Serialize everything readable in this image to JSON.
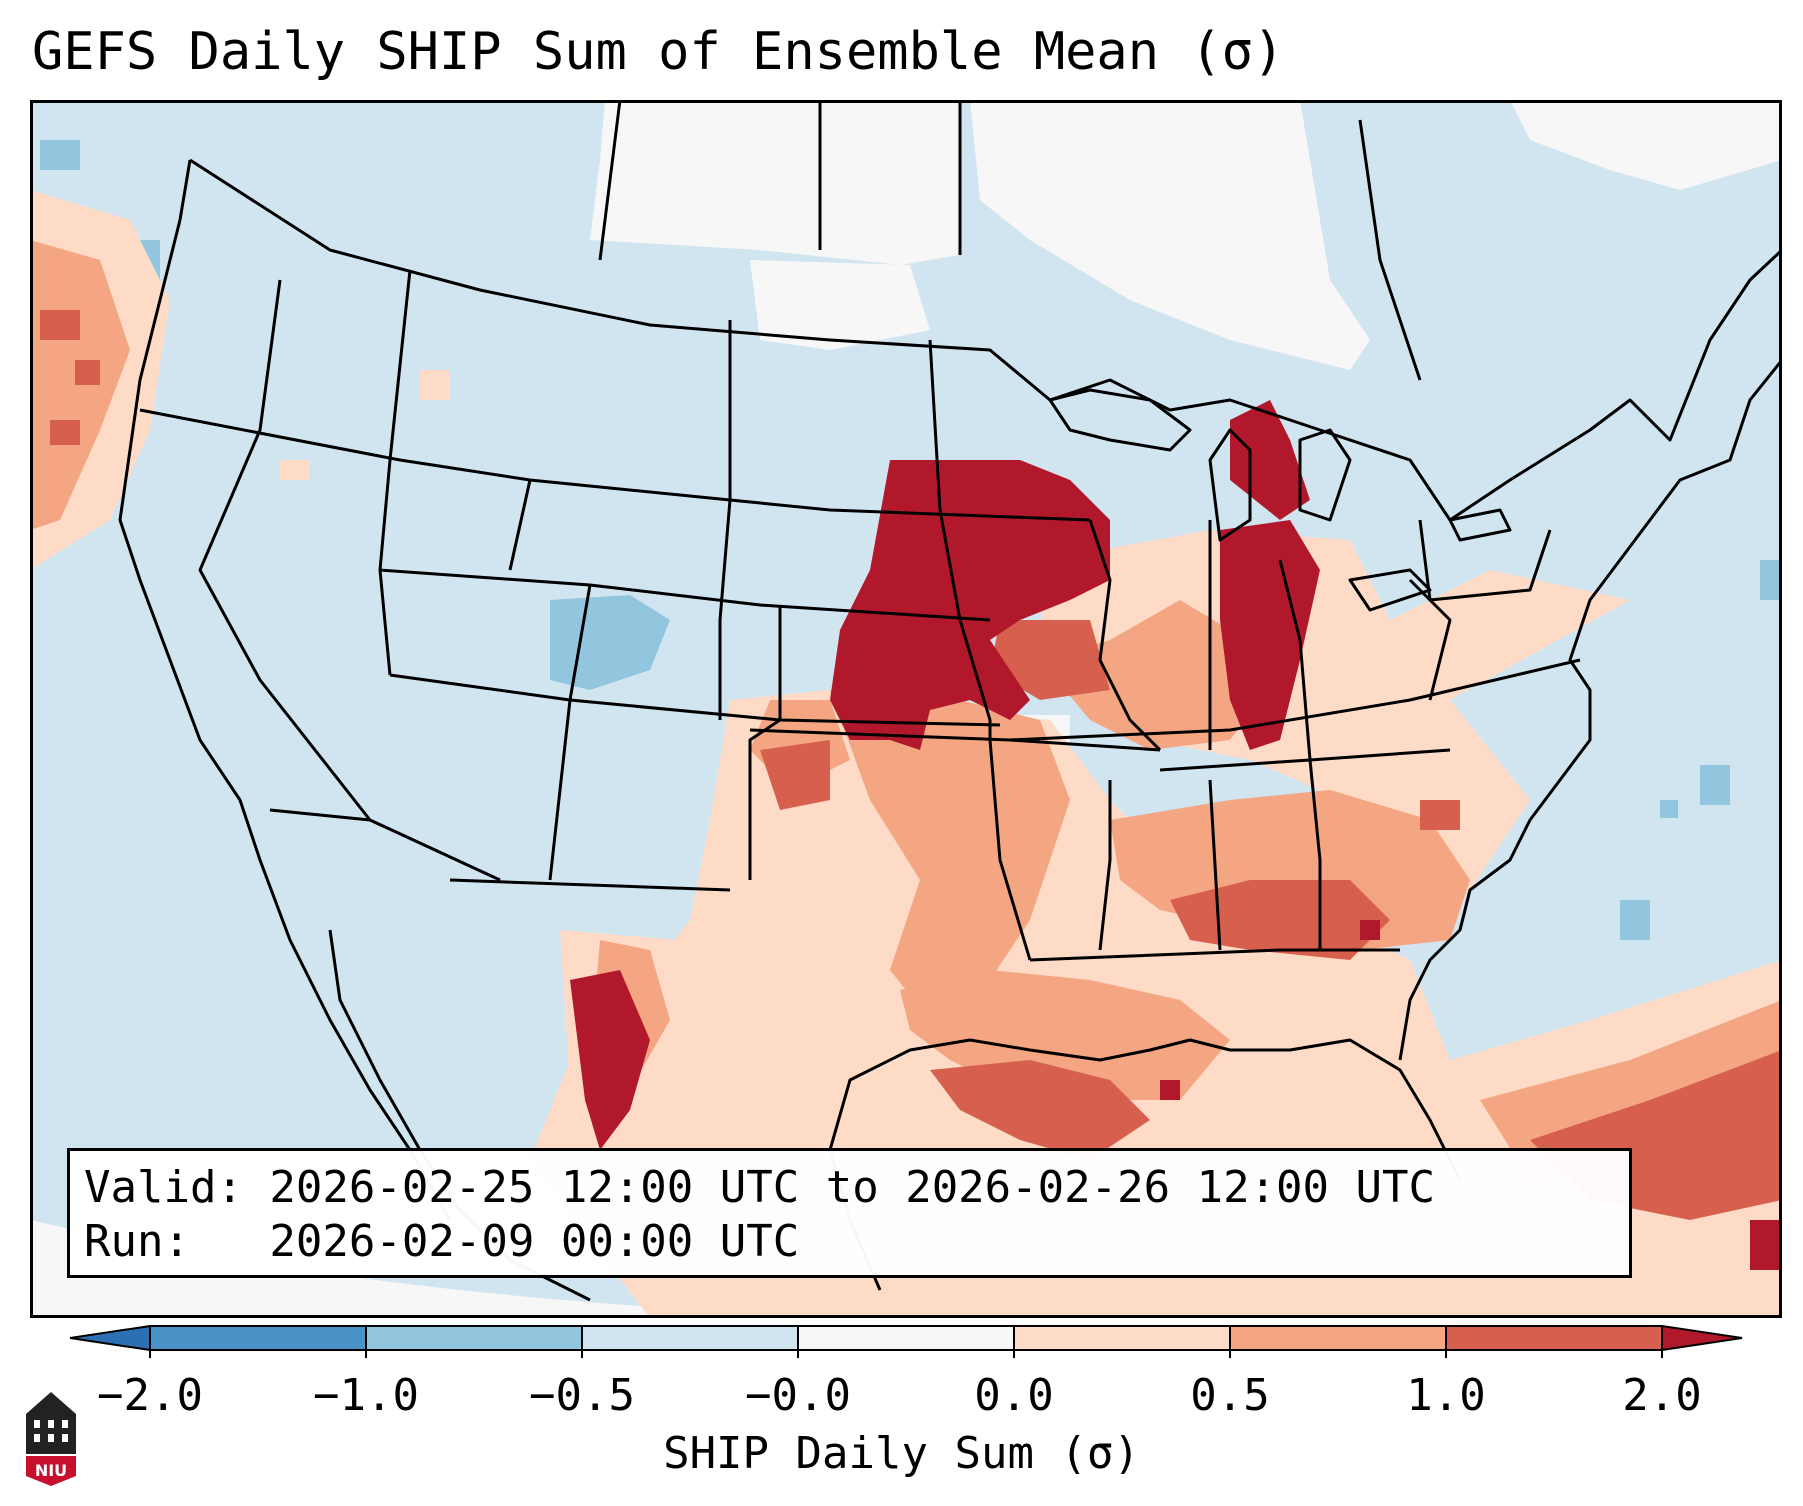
{
  "title": "GEFS Daily SHIP Sum of Ensemble Mean (σ)",
  "info": {
    "valid": "Valid: 2026-02-25 12:00 UTC to 2026-02-26 12:00 UTC",
    "run": "Run:   2026-02-09 00:00 UTC"
  },
  "colorbar": {
    "title": "SHIP Daily Sum (σ)",
    "ticks": [
      "−2.0",
      "−1.0",
      "−0.5",
      "−0.0",
      "0.0",
      "0.5",
      "1.0",
      "2.0"
    ],
    "colors": {
      "extend_low": "#2b6fb5",
      "b_m2_m1": "#4a93c8",
      "b_m1_m05": "#92c5de",
      "b_m05_m0": "#d1e5f0",
      "b_m0_0": "#f7f7f7",
      "b_0_05": "#fddbc7",
      "b_05_1": "#f4a582",
      "b_1_2": "#d6604d",
      "extend_high": "#b2182b"
    }
  },
  "logo": {
    "text": "NIU"
  }
}
